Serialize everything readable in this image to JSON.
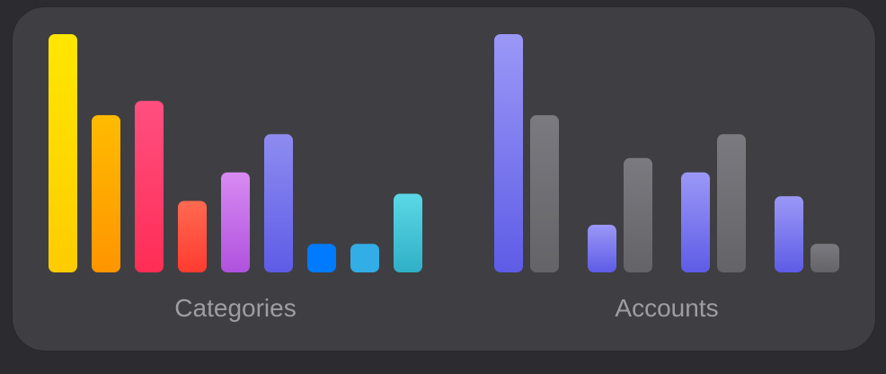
{
  "chart_data": [
    {
      "type": "bar",
      "xlabel": "Categories",
      "values": [
        100,
        66,
        72,
        30,
        42,
        58,
        12,
        12,
        33
      ],
      "colors": [
        [
          "#ffe600",
          "#ffcc00"
        ],
        [
          "#ffbb00",
          "#ff9500"
        ],
        [
          "#ff4f80",
          "#ff2d55"
        ],
        [
          "#ff6a50",
          "#ff3b30"
        ],
        [
          "#d88af2",
          "#af52de"
        ],
        [
          "#8e8cf0",
          "#5e5ce6"
        ],
        [
          "#007aff",
          "#007aff"
        ],
        [
          "#32ade6",
          "#32ade6"
        ],
        [
          "#5ad8e6",
          "#30b0c7"
        ]
      ],
      "ylim": [
        0,
        100
      ]
    },
    {
      "type": "bar",
      "xlabel": "Accounts",
      "groups": [
        [
          100,
          66
        ],
        [
          20,
          48
        ],
        [
          42,
          58
        ],
        [
          32,
          12
        ]
      ],
      "colors": {
        "primary": [
          "#9b98f7",
          "#5e5ce6"
        ],
        "secondary": [
          "#7a7a80",
          "#636368"
        ]
      },
      "ylim": [
        0,
        100
      ]
    }
  ]
}
